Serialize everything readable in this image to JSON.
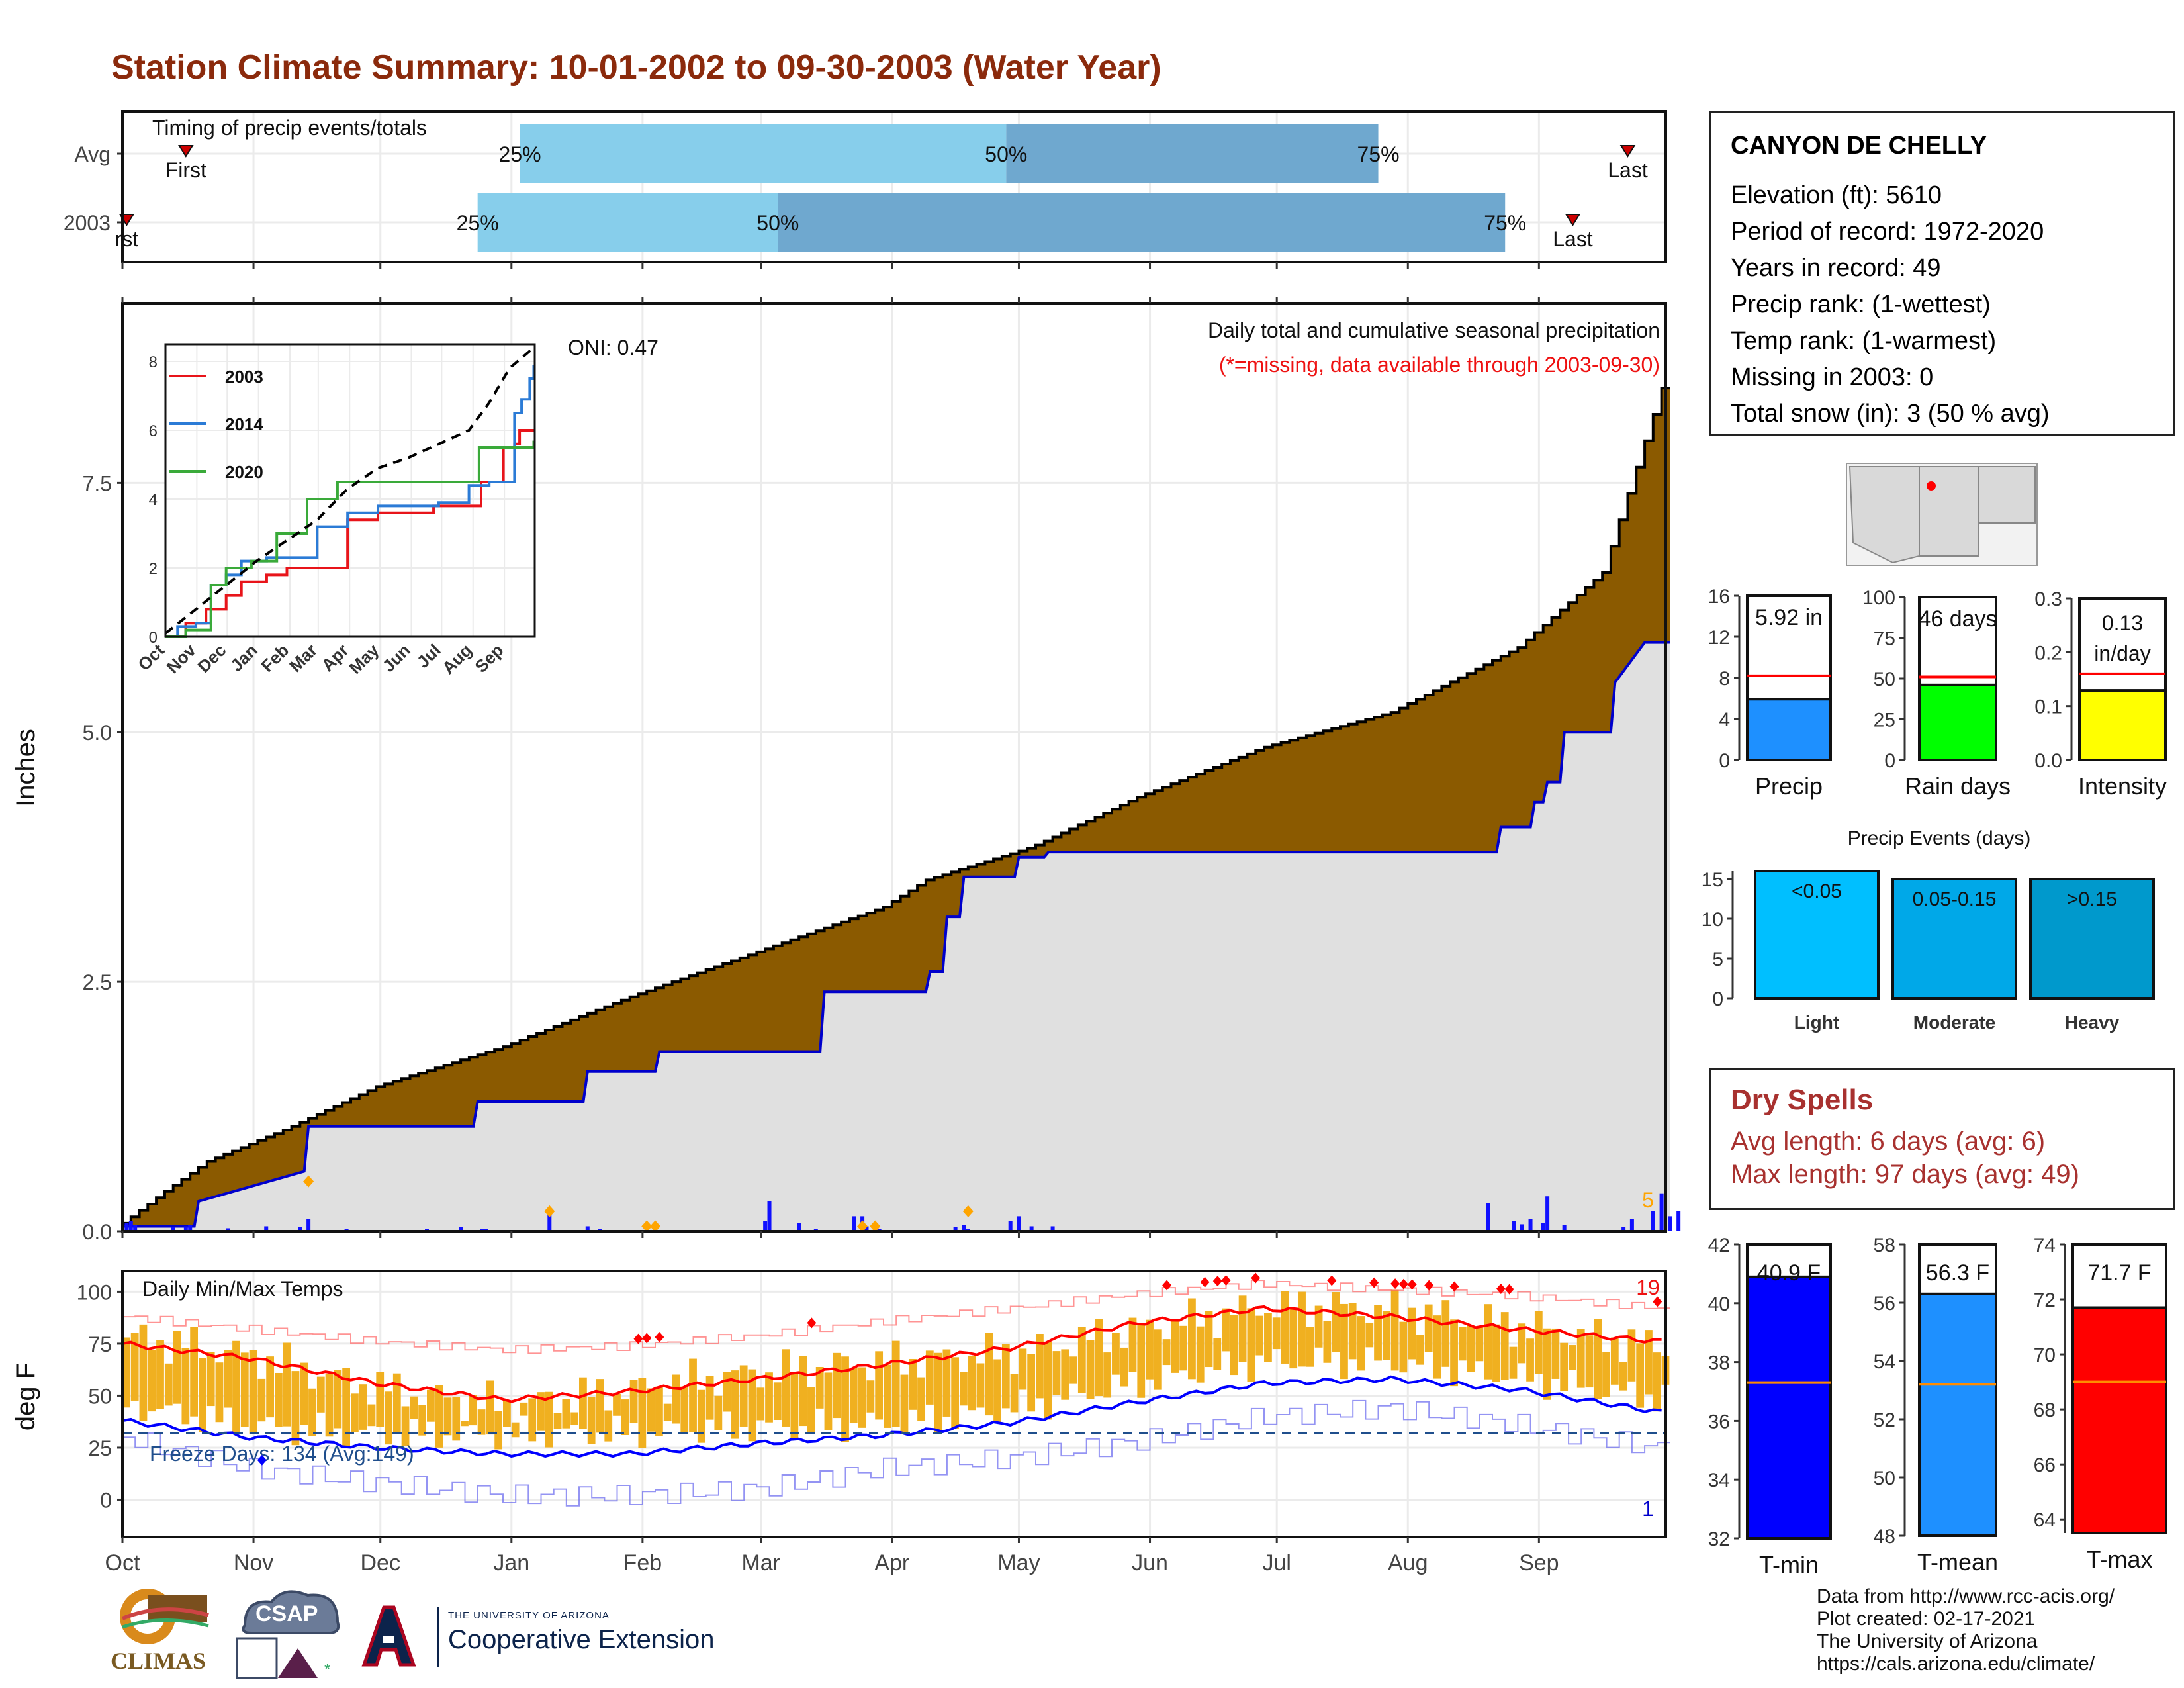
{
  "title": "Station Climate Summary: 10-01-2002 to 09-30-2003 (Water Year)",
  "colors": {
    "title": "#8b2a0c",
    "cumulative": "#8b5a00",
    "avg_cum": "#0000cc",
    "avg_fill": "#e0e0e0",
    "tmax": "#ff0000",
    "tmin": "#0000ff",
    "range": "#f0b020",
    "dry": "#a8312f"
  },
  "months": [
    "Oct",
    "Nov",
    "Dec",
    "Jan",
    "Feb",
    "Mar",
    "Apr",
    "May",
    "Jun",
    "Jul",
    "Aug",
    "Sep"
  ],
  "station": {
    "name": "CANYON DE CHELLY",
    "lines": [
      "Elevation (ft): 5610",
      "Period of record: 1972-2020",
      "Years in record: 49",
      "Precip rank:  (1-wettest)",
      "Temp rank:  (1-warmest)",
      "Missing in 2003: 0",
      "Total snow (in): 3 (50 % avg)"
    ]
  },
  "dry_spells": {
    "title": "Dry Spells",
    "avg": "Avg length: 6 days (avg: 6)",
    "max": "Max length: 97 days (avg: 49)"
  },
  "credits": [
    "Data from http://www.rcc-acis.org/",
    "Plot created: 02-17-2021",
    "The University of Arizona",
    "https://cals.arizona.edu/climate/"
  ],
  "logos": {
    "climas": "CLIMAS",
    "csap": "CSAP",
    "ua_small": "THE UNIVERSITY OF ARIZONA",
    "ua_big": "Cooperative Extension"
  },
  "chart_data": [
    {
      "type": "bar",
      "name": "timing",
      "title": "Timing of precip events/totals",
      "rows": [
        {
          "label": "Avg",
          "first": "First",
          "last": "Last",
          "first_day": 15,
          "last_day": 356,
          "q25_day": 94,
          "q50_day": 209,
          "q75_day": 297
        },
        {
          "label": "2003",
          "first": "rst",
          "last": "Last",
          "first_day": 1,
          "last_day": 343,
          "q25_day": 84,
          "q50_day": 155,
          "q75_day": 327
        }
      ],
      "quartile_labels": [
        "25%",
        "50%",
        "75%"
      ]
    },
    {
      "type": "area",
      "name": "precip",
      "title": "Daily total and cumulative seasonal precipitation",
      "subtitle": "(*=missing, data available through 2003-09-30)",
      "annotation": "ONI: 0.47",
      "ylabel": "Inches",
      "ylim": [
        0,
        9.3
      ],
      "yticks": [
        0.0,
        2.5,
        5.0,
        7.5
      ],
      "ytick_labels": [
        "0.0",
        "2.5",
        "5.0",
        "7.5"
      ],
      "count_label": "5",
      "avg_cumulative": {
        "x": [
          0,
          17,
          18,
          43,
          44,
          83,
          84,
          109,
          110,
          126,
          127,
          165,
          166,
          190,
          191,
          194,
          195,
          198,
          199,
          211,
          212,
          218,
          219,
          325,
          326,
          333,
          334,
          336,
          337,
          340,
          341,
          352,
          353,
          360,
          364
        ],
        "y": [
          0.05,
          0.05,
          0.3,
          0.6,
          1.05,
          1.05,
          1.3,
          1.3,
          1.6,
          1.6,
          1.8,
          1.8,
          2.4,
          2.4,
          2.6,
          2.6,
          3.15,
          3.15,
          3.55,
          3.55,
          3.75,
          3.75,
          3.8,
          3.8,
          4.05,
          4.05,
          4.3,
          4.3,
          4.5,
          4.5,
          5.0,
          5.0,
          5.5,
          5.9,
          5.9
        ]
      },
      "cumulative_2003": {
        "x": [
          0,
          10,
          20,
          40,
          60,
          90,
          120,
          150,
          180,
          190,
          215,
          240,
          270,
          300,
          330,
          350,
          364
        ],
        "y": [
          0.08,
          0.4,
          0.7,
          1.05,
          1.45,
          1.85,
          2.35,
          2.8,
          3.25,
          3.52,
          3.85,
          4.35,
          4.85,
          5.2,
          5.85,
          6.6,
          8.45
        ]
      },
      "daily_bars": [
        [
          1,
          0.08
        ],
        [
          2,
          0.1
        ],
        [
          3,
          0.06
        ],
        [
          12,
          0.04
        ],
        [
          15,
          0.05
        ],
        [
          16,
          0.06
        ],
        [
          25,
          0.03
        ],
        [
          34,
          0.05
        ],
        [
          42,
          0.04
        ],
        [
          44,
          0.12
        ],
        [
          53,
          0.02
        ],
        [
          72,
          0.02
        ],
        [
          80,
          0.04
        ],
        [
          85,
          0.02
        ],
        [
          86,
          0.02
        ],
        [
          101,
          0.16
        ],
        [
          110,
          0.05
        ],
        [
          113,
          0.02
        ],
        [
          126,
          0.06
        ],
        [
          152,
          0.1
        ],
        [
          153,
          0.3
        ],
        [
          160,
          0.08
        ],
        [
          164,
          0.02
        ],
        [
          173,
          0.15
        ],
        [
          175,
          0.15
        ],
        [
          176,
          0.05
        ],
        [
          179,
          0.02
        ],
        [
          197,
          0.04
        ],
        [
          199,
          0.06
        ],
        [
          200,
          0.02
        ],
        [
          210,
          0.1
        ],
        [
          212,
          0.15
        ],
        [
          215,
          0.05
        ],
        [
          220,
          0.05
        ],
        [
          323,
          0.28
        ],
        [
          329,
          0.1
        ],
        [
          331,
          0.07
        ],
        [
          333,
          0.12
        ],
        [
          336,
          0.08
        ],
        [
          337,
          0.35
        ],
        [
          341,
          0.06
        ],
        [
          355,
          0.04
        ],
        [
          357,
          0.12
        ],
        [
          362,
          0.2
        ],
        [
          364,
          0.38
        ],
        [
          366,
          0.15
        ],
        [
          368,
          0.2
        ]
      ],
      "inset": {
        "type": "line",
        "ylim": [
          0,
          8.5
        ],
        "yticks": [
          0,
          2,
          4,
          6,
          8
        ],
        "months": [
          "Oct",
          "Nov",
          "Dec",
          "Jan",
          "Feb",
          "Mar",
          "Apr",
          "May",
          "Jun",
          "Jul",
          "Aug",
          "Sep"
        ],
        "series": [
          {
            "name": "2003",
            "color": "#e8141a",
            "x": [
              0,
              20,
              40,
              60,
              75,
              100,
              120,
              150,
              180,
              210,
              240,
              265,
              283,
              300,
              312,
              327,
              334,
              345,
              350,
              364
            ],
            "y": [
              0,
              0.4,
              0.8,
              1.2,
              1.6,
              1.8,
              2.0,
              2.0,
              3.4,
              3.6,
              3.6,
              3.8,
              3.8,
              3.8,
              4.5,
              4.5,
              5.5,
              5.6,
              6.0,
              6.0
            ]
          },
          {
            "name": "2014",
            "color": "#2b7bd6",
            "x": [
              0,
              12,
              30,
              45,
              60,
              75,
              100,
              130,
              150,
              180,
              210,
              240,
              270,
              285,
              300,
              320,
              335,
              345,
              352,
              360,
              364
            ],
            "y": [
              0,
              0.3,
              0.4,
              1.5,
              1.8,
              2.2,
              2.3,
              2.3,
              3.2,
              3.6,
              3.8,
              3.8,
              3.9,
              3.9,
              4.4,
              4.5,
              4.5,
              6.5,
              6.9,
              7.5,
              7.9
            ]
          },
          {
            "name": "2020",
            "color": "#3aaa3a",
            "x": [
              0,
              20,
              45,
              60,
              85,
              110,
              130,
              140,
              150,
              170,
              200,
              240,
              270,
              300,
              310,
              320,
              345,
              364
            ],
            "y": [
              0,
              0.2,
              1.5,
              2.0,
              2.2,
              3.0,
              3.0,
              4.0,
              4.0,
              4.5,
              4.5,
              4.5,
              4.5,
              4.5,
              5.5,
              5.5,
              5.5,
              5.7
            ]
          },
          {
            "name": "",
            "color": "#000000",
            "dash": true,
            "x": [
              0,
              30,
              60,
              90,
              120,
              150,
              180,
              210,
              240,
              270,
              300,
              320,
              340,
              364
            ],
            "y": [
              0.1,
              0.8,
              1.5,
              2.2,
              2.8,
              3.4,
              4.3,
              4.9,
              5.2,
              5.6,
              6.0,
              6.8,
              7.8,
              8.4
            ]
          }
        ]
      }
    },
    {
      "type": "line",
      "name": "temps",
      "title": "Daily Min/Max Temps",
      "ylabel": "deg F",
      "ylim": [
        -18,
        110
      ],
      "yticks": [
        0,
        25,
        50,
        75,
        100
      ],
      "ytick_labels": [
        "0",
        "25",
        "50",
        "75",
        "100"
      ],
      "freeze_label": "Freeze Days: 134 (Avg:149)",
      "freeze_line": 32,
      "tmax_count_label": "19",
      "tmin_count_label": "1",
      "avg_tmax": {
        "x": [
          0,
          30,
          60,
          90,
          120,
          150,
          180,
          210,
          240,
          270,
          300,
          330,
          364
        ],
        "y": [
          75,
          68,
          56,
          48,
          52,
          58,
          65,
          73,
          85,
          92,
          88,
          82,
          76
        ]
      },
      "avg_tmin": {
        "x": [
          0,
          30,
          60,
          90,
          120,
          150,
          180,
          210,
          240,
          270,
          300,
          330,
          364
        ],
        "y": [
          38,
          30,
          25,
          22,
          22,
          27,
          31,
          37,
          47,
          56,
          58,
          53,
          42
        ]
      },
      "record_high": {
        "x": [
          0,
          30,
          60,
          90,
          120,
          150,
          180,
          210,
          240,
          270,
          300,
          330,
          364
        ],
        "y": [
          88,
          82,
          76,
          72,
          74,
          79,
          86,
          92,
          99,
          104,
          101,
          98,
          92
        ]
      },
      "record_low": {
        "x": [
          0,
          30,
          60,
          90,
          120,
          150,
          180,
          210,
          240,
          270,
          300,
          330,
          364
        ],
        "y": [
          30,
          15,
          8,
          2,
          2,
          5,
          15,
          20,
          28,
          40,
          44,
          36,
          24
        ]
      }
    },
    {
      "type": "bar",
      "name": "precip_total",
      "label": "5.92 in",
      "xlabel": "Precip",
      "value": 5.92,
      "avg": 8.2,
      "ylim": [
        0,
        16
      ],
      "yticks": [
        0,
        4,
        8,
        12,
        16
      ],
      "color": "#1e90ff"
    },
    {
      "type": "bar",
      "name": "rain_days",
      "label": "46 days",
      "xlabel": "Rain days",
      "value": 46,
      "avg": 51,
      "ylim": [
        0,
        100
      ],
      "yticks": [
        0,
        25,
        50,
        75,
        100
      ],
      "color": "#00ff00"
    },
    {
      "type": "bar",
      "name": "intensity",
      "label": "0.13",
      "label2": "in/day",
      "xlabel": "Intensity",
      "value": 0.129,
      "avg": 0.16,
      "ylim": [
        0,
        0.3
      ],
      "yticks": [
        0.0,
        0.1,
        0.2,
        0.3
      ],
      "ytick_labels": [
        "0.0",
        "0.1",
        "0.2",
        "0.3"
      ],
      "color": "#ffff00"
    },
    {
      "type": "bar",
      "name": "precip_events",
      "title": "Precip Events (days)",
      "ylim": [
        0,
        16
      ],
      "yticks": [
        0,
        5,
        10,
        15
      ],
      "categories": [
        "Light",
        "Moderate",
        "Heavy"
      ],
      "labels": [
        "<0.05",
        "0.05-0.15",
        ">0.15"
      ],
      "values": [
        16,
        15,
        15
      ],
      "colors": [
        "#00bfff",
        "#00a8e8",
        "#0099cc"
      ]
    },
    {
      "type": "bar",
      "name": "tmin",
      "label": "40.9 F",
      "xlabel": "T-min",
      "value": 40.9,
      "avg": 37.3,
      "ylim": [
        32,
        42
      ],
      "yticks": [
        32,
        34,
        36,
        38,
        40,
        42
      ],
      "color": "#0000ff"
    },
    {
      "type": "bar",
      "name": "tmean",
      "label": "56.3 F",
      "xlabel": "T-mean",
      "value": 56.3,
      "avg": 53.2,
      "ylim": [
        48,
        58
      ],
      "yticks": [
        48,
        50,
        52,
        54,
        56,
        58
      ],
      "color": "#1e90ff"
    },
    {
      "type": "bar",
      "name": "tmax",
      "label": "71.7 F",
      "xlabel": "T-max",
      "value": 71.7,
      "avg": 69.0,
      "ylim": [
        63.5,
        74
      ],
      "yticks": [
        64,
        66,
        68,
        70,
        72,
        74
      ],
      "color": "#ff0000"
    }
  ]
}
